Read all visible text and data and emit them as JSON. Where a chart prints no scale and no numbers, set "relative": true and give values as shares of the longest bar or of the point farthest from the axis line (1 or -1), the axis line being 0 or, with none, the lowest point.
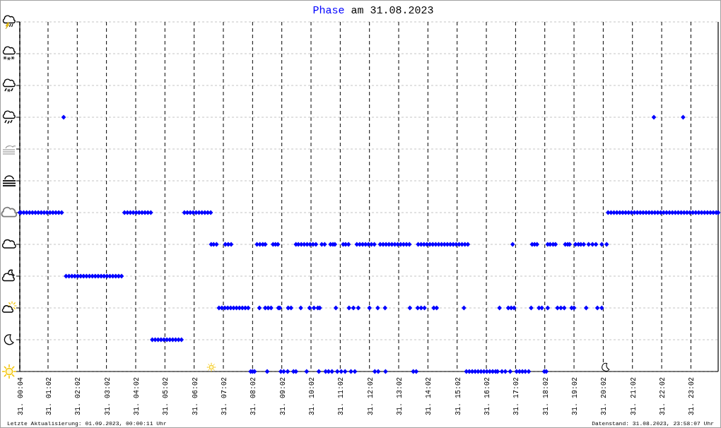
{
  "chart_data": {
    "type": "scatter",
    "title": "Phase am 31.08.2023",
    "relative": true,
    "xlim": [
      "2023-08-31T00:04",
      "2023-08-31T23:58"
    ],
    "xticks": [
      {
        "value": "2023-08-31T00:04",
        "label": "31. 00:04"
      },
      {
        "value": "2023-08-31T01:02",
        "label": "31. 01:02"
      },
      {
        "value": "2023-08-31T02:02",
        "label": "31. 02:02"
      },
      {
        "value": "2023-08-31T03:02",
        "label": "31. 03:02"
      },
      {
        "value": "2023-08-31T04:02",
        "label": "31. 04:02"
      },
      {
        "value": "2023-08-31T05:02",
        "label": "31. 05:02"
      },
      {
        "value": "2023-08-31T06:02",
        "label": "31. 06:02"
      },
      {
        "value": "2023-08-31T07:02",
        "label": "31. 07:02"
      },
      {
        "value": "2023-08-31T08:02",
        "label": "31. 08:02"
      },
      {
        "value": "2023-08-31T09:02",
        "label": "31. 09:02"
      },
      {
        "value": "2023-08-31T10:02",
        "label": "31. 10:02"
      },
      {
        "value": "2023-08-31T11:02",
        "label": "31. 11:02"
      },
      {
        "value": "2023-08-31T12:02",
        "label": "31. 12:02"
      },
      {
        "value": "2023-08-31T13:02",
        "label": "31. 13:02"
      },
      {
        "value": "2023-08-31T14:02",
        "label": "31. 14:02"
      },
      {
        "value": "2023-08-31T15:02",
        "label": "31. 15:02"
      },
      {
        "value": "2023-08-31T16:02",
        "label": "31. 16:02"
      },
      {
        "value": "2023-08-31T17:02",
        "label": "31. 17:02"
      },
      {
        "value": "2023-08-31T18:02",
        "label": "31. 18:02"
      },
      {
        "value": "2023-08-31T19:02",
        "label": "31. 19:02"
      },
      {
        "value": "2023-08-31T20:02",
        "label": "31. 20:02"
      },
      {
        "value": "2023-08-31T21:02",
        "label": "31. 21:02"
      },
      {
        "value": "2023-08-31T22:02",
        "label": "31. 22:02"
      },
      {
        "value": "2023-08-31T23:02",
        "label": "31. 23:02"
      }
    ],
    "grid": true,
    "marker": "diamond",
    "color": "#0000ff",
    "x": [
      "2023-08-31T00:04",
      "2023-08-31T00:06",
      "2023-08-31T00:12",
      "2023-08-31T00:18",
      "2023-08-31T00:24",
      "2023-08-31T00:30",
      "2023-08-31T00:36",
      "2023-08-31T00:42",
      "2023-08-31T00:48",
      "2023-08-31T00:54",
      "2023-08-31T01:00",
      "2023-08-31T01:06",
      "2023-08-31T01:12",
      "2023-08-31T01:18",
      "2023-08-31T01:24",
      "2023-08-31T01:30",
      "2023-08-31T03:39",
      "2023-08-31T03:45",
      "2023-08-31T03:51",
      "2023-08-31T03:57",
      "2023-08-31T04:03",
      "2023-08-31T04:09",
      "2023-08-31T04:15",
      "2023-08-31T04:21",
      "2023-08-31T04:27",
      "2023-08-31T04:33",
      "2023-08-31T05:42",
      "2023-08-31T05:48",
      "2023-08-31T05:54",
      "2023-08-31T06:00",
      "2023-08-31T06:06",
      "2023-08-31T06:12",
      "2023-08-31T06:18",
      "2023-08-31T06:24",
      "2023-08-31T06:30",
      "2023-08-31T06:36",
      "2023-08-31T20:12",
      "2023-08-31T20:18",
      "2023-08-31T20:24",
      "2023-08-31T20:30",
      "2023-08-31T20:36",
      "2023-08-31T20:42",
      "2023-08-31T20:48",
      "2023-08-31T20:54",
      "2023-08-31T21:00",
      "2023-08-31T21:06",
      "2023-08-31T21:12",
      "2023-08-31T21:18",
      "2023-08-31T21:24",
      "2023-08-31T21:30",
      "2023-08-31T21:36",
      "2023-08-31T21:42",
      "2023-08-31T21:48",
      "2023-08-31T21:54",
      "2023-08-31T22:00",
      "2023-08-31T22:06",
      "2023-08-31T22:12",
      "2023-08-31T22:18",
      "2023-08-31T22:24",
      "2023-08-31T22:30",
      "2023-08-31T22:36",
      "2023-08-31T22:42",
      "2023-08-31T22:48",
      "2023-08-31T22:54",
      "2023-08-31T23:00",
      "2023-08-31T23:06",
      "2023-08-31T23:12",
      "2023-08-31T23:18",
      "2023-08-31T23:24",
      "2023-08-31T23:30",
      "2023-08-31T23:36",
      "2023-08-31T23:42",
      "2023-08-31T23:48",
      "2023-08-31T23:54",
      "2023-08-31T23:58",
      "2023-08-31T01:34",
      "2023-08-31T21:46",
      "2023-08-31T22:46",
      "2023-08-31T01:39",
      "2023-08-31T01:45",
      "2023-08-31T01:51",
      "2023-08-31T01:57",
      "2023-08-31T02:03",
      "2023-08-31T02:09",
      "2023-08-31T02:15",
      "2023-08-31T02:21",
      "2023-08-31T02:27",
      "2023-08-31T02:33",
      "2023-08-31T02:39",
      "2023-08-31T02:45",
      "2023-08-31T02:51",
      "2023-08-31T02:57",
      "2023-08-31T03:03",
      "2023-08-31T03:09",
      "2023-08-31T03:15",
      "2023-08-31T03:21",
      "2023-08-31T03:27",
      "2023-08-31T03:33",
      "2023-08-31T04:36",
      "2023-08-31T04:42",
      "2023-08-31T04:48",
      "2023-08-31T04:54",
      "2023-08-31T05:00",
      "2023-08-31T05:06",
      "2023-08-31T05:12",
      "2023-08-31T05:18",
      "2023-08-31T05:24",
      "2023-08-31T05:30",
      "2023-08-31T05:36",
      "2023-08-31T06:37",
      "2023-08-31T06:42",
      "2023-08-31T06:48",
      "2023-08-31T07:06",
      "2023-08-31T07:12",
      "2023-08-31T07:18",
      "2023-08-31T08:11",
      "2023-08-31T08:17",
      "2023-08-31T08:23",
      "2023-08-31T08:28",
      "2023-08-31T08:44",
      "2023-08-31T08:49",
      "2023-08-31T08:54",
      "2023-08-31T09:31",
      "2023-08-31T09:36",
      "2023-08-31T09:42",
      "2023-08-31T09:48",
      "2023-08-31T09:54",
      "2023-08-31T10:00",
      "2023-08-31T10:06",
      "2023-08-31T10:12",
      "2023-08-31T10:24",
      "2023-08-31T10:30",
      "2023-08-31T10:42",
      "2023-08-31T10:47",
      "2023-08-31T10:51",
      "2023-08-31T11:08",
      "2023-08-31T11:13",
      "2023-08-31T11:19",
      "2023-08-31T11:36",
      "2023-08-31T11:42",
      "2023-08-31T11:48",
      "2023-08-31T11:54",
      "2023-08-31T12:00",
      "2023-08-31T12:06",
      "2023-08-31T12:12",
      "2023-08-31T12:24",
      "2023-08-31T12:30",
      "2023-08-31T12:36",
      "2023-08-31T12:42",
      "2023-08-31T12:48",
      "2023-08-31T12:54",
      "2023-08-31T13:00",
      "2023-08-31T13:06",
      "2023-08-31T13:12",
      "2023-08-31T13:18",
      "2023-08-31T13:24",
      "2023-08-31T13:42",
      "2023-08-31T13:48",
      "2023-08-31T13:54",
      "2023-08-31T14:00",
      "2023-08-31T14:06",
      "2023-08-31T14:12",
      "2023-08-31T14:18",
      "2023-08-31T14:24",
      "2023-08-31T14:30",
      "2023-08-31T14:36",
      "2023-08-31T14:42",
      "2023-08-31T14:48",
      "2023-08-31T14:54",
      "2023-08-31T15:00",
      "2023-08-31T15:06",
      "2023-08-31T15:12",
      "2023-08-31T15:18",
      "2023-08-31T15:24",
      "2023-08-31T16:56",
      "2023-08-31T17:36",
      "2023-08-31T17:41",
      "2023-08-31T17:46",
      "2023-08-31T18:08",
      "2023-08-31T18:13",
      "2023-08-31T18:19",
      "2023-08-31T18:24",
      "2023-08-31T18:44",
      "2023-08-31T18:49",
      "2023-08-31T18:53",
      "2023-08-31T19:05",
      "2023-08-31T19:11",
      "2023-08-31T19:16",
      "2023-08-31T19:22",
      "2023-08-31T19:32",
      "2023-08-31T19:40",
      "2023-08-31T19:47",
      "2023-08-31T19:59",
      "2023-08-31T20:09",
      "2023-08-31T06:53",
      "2023-08-31T06:59",
      "2023-08-31T07:05",
      "2023-08-31T07:11",
      "2023-08-31T07:17",
      "2023-08-31T07:23",
      "2023-08-31T07:29",
      "2023-08-31T07:35",
      "2023-08-31T07:41",
      "2023-08-31T07:47",
      "2023-08-31T07:53",
      "2023-08-31T08:16",
      "2023-08-31T08:28",
      "2023-08-31T08:34",
      "2023-08-31T08:40",
      "2023-08-31T08:55",
      "2023-08-31T08:58",
      "2023-08-31T09:15",
      "2023-08-31T09:21",
      "2023-08-31T09:41",
      "2023-08-31T09:59",
      "2023-08-31T10:08",
      "2023-08-31T10:16",
      "2023-08-31T10:20",
      "2023-08-31T10:53",
      "2023-08-31T11:20",
      "2023-08-31T11:29",
      "2023-08-31T11:39",
      "2023-08-31T12:02",
      "2023-08-31T12:19",
      "2023-08-31T12:34",
      "2023-08-31T13:25",
      "2023-08-31T13:41",
      "2023-08-31T13:48",
      "2023-08-31T13:55",
      "2023-08-31T14:14",
      "2023-08-31T14:20",
      "2023-08-31T15:16",
      "2023-08-31T16:29",
      "2023-08-31T16:47",
      "2023-08-31T16:53",
      "2023-08-31T16:59",
      "2023-08-31T17:34",
      "2023-08-31T17:50",
      "2023-08-31T17:56",
      "2023-08-31T18:08",
      "2023-08-31T18:28",
      "2023-08-31T18:35",
      "2023-08-31T18:42",
      "2023-08-31T18:57",
      "2023-08-31T19:02",
      "2023-08-31T19:27",
      "2023-08-31T19:50",
      "2023-08-31T19:59",
      "2023-08-31T07:58",
      "2023-08-31T08:02",
      "2023-08-31T08:06",
      "2023-08-31T08:32",
      "2023-08-31T09:00",
      "2023-08-31T09:06",
      "2023-08-31T09:14",
      "2023-08-31T09:26",
      "2023-08-31T09:31",
      "2023-08-31T09:53",
      "2023-08-31T10:18",
      "2023-08-31T10:32",
      "2023-08-31T10:38",
      "2023-08-31T10:45",
      "2023-08-31T10:56",
      "2023-08-31T11:04",
      "2023-08-31T11:12",
      "2023-08-31T11:24",
      "2023-08-31T11:32",
      "2023-08-31T12:13",
      "2023-08-31T12:20",
      "2023-08-31T12:35",
      "2023-08-31T13:32",
      "2023-08-31T13:38",
      "2023-08-31T15:21",
      "2023-08-31T15:27",
      "2023-08-31T15:33",
      "2023-08-31T15:39",
      "2023-08-31T15:45",
      "2023-08-31T15:51",
      "2023-08-31T15:57",
      "2023-08-31T16:03",
      "2023-08-31T16:09",
      "2023-08-31T16:15",
      "2023-08-31T16:21",
      "2023-08-31T16:25",
      "2023-08-31T16:34",
      "2023-08-31T16:41",
      "2023-08-31T16:51",
      "2023-08-31T17:04",
      "2023-08-31T17:10",
      "2023-08-31T17:16",
      "2023-08-31T17:22",
      "2023-08-31T17:29",
      "2023-08-31T18:01",
      "2023-08-31T18:05"
    ],
    "values": [
      0.625,
      0.625,
      0.625,
      0.625,
      0.625,
      0.625,
      0.625,
      0.625,
      0.625,
      0.625,
      0.625,
      0.625,
      0.625,
      0.625,
      0.625,
      0.625,
      0.625,
      0.625,
      0.625,
      0.625,
      0.625,
      0.625,
      0.625,
      0.625,
      0.625,
      0.625,
      0.625,
      0.625,
      0.625,
      0.625,
      0.625,
      0.625,
      0.625,
      0.625,
      0.625,
      0.625,
      0.625,
      0.625,
      0.625,
      0.625,
      0.625,
      0.625,
      0.625,
      0.625,
      0.625,
      0.625,
      0.625,
      0.625,
      0.625,
      0.625,
      0.625,
      0.625,
      0.625,
      0.625,
      0.625,
      0.625,
      0.625,
      0.625,
      0.625,
      0.625,
      0.625,
      0.625,
      0.625,
      0.625,
      0.625,
      0.625,
      0.625,
      0.625,
      0.625,
      0.625,
      0.625,
      0.625,
      0.625,
      0.625,
      0.625,
      1,
      1,
      1,
      0.375,
      0.375,
      0.375,
      0.375,
      0.375,
      0.375,
      0.375,
      0.375,
      0.375,
      0.375,
      0.375,
      0.375,
      0.375,
      0.375,
      0.375,
      0.375,
      0.375,
      0.375,
      0.375,
      0.375,
      0.125,
      0.125,
      0.125,
      0.125,
      0.125,
      0.125,
      0.125,
      0.125,
      0.125,
      0.125,
      0.125,
      0.5,
      0.5,
      0.5,
      0.5,
      0.5,
      0.5,
      0.5,
      0.5,
      0.5,
      0.5,
      0.5,
      0.5,
      0.5,
      0.5,
      0.5,
      0.5,
      0.5,
      0.5,
      0.5,
      0.5,
      0.5,
      0.5,
      0.5,
      0.5,
      0.5,
      0.5,
      0.5,
      0.5,
      0.5,
      0.5,
      0.5,
      0.5,
      0.5,
      0.5,
      0.5,
      0.5,
      0.5,
      0.5,
      0.5,
      0.5,
      0.5,
      0.5,
      0.5,
      0.5,
      0.5,
      0.5,
      0.5,
      0.5,
      0.5,
      0.5,
      0.5,
      0.5,
      0.5,
      0.5,
      0.5,
      0.5,
      0.5,
      0.5,
      0.5,
      0.5,
      0.5,
      0.5,
      0.5,
      0.5,
      0.5,
      0.5,
      0.5,
      0.5,
      0.5,
      0.5,
      0.5,
      0.5,
      0.5,
      0.5,
      0.5,
      0.5,
      0.5,
      0.5,
      0.5,
      0.5,
      0.5,
      0.5,
      0.5,
      0.5,
      0.5,
      0.25,
      0.25,
      0.25,
      0.25,
      0.25,
      0.25,
      0.25,
      0.25,
      0.25,
      0.25,
      0.25,
      0.25,
      0.25,
      0.25,
      0.25,
      0.25,
      0.25,
      0.25,
      0.25,
      0.25,
      0.25,
      0.25,
      0.25,
      0.25,
      0.25,
      0.25,
      0.25,
      0.25,
      0.25,
      0.25,
      0.25,
      0.25,
      0.25,
      0.25,
      0.25,
      0.25,
      0.25,
      0.25,
      0.25,
      0.25,
      0.25,
      0.25,
      0.25,
      0.25,
      0.25,
      0.25,
      0.25,
      0.25,
      0.25,
      0.25,
      0.25,
      0.25,
      0.25,
      0.25,
      0,
      0,
      0,
      0,
      0,
      0,
      0,
      0,
      0,
      0,
      0,
      0,
      0,
      0,
      0,
      0,
      0,
      0,
      0,
      0,
      0,
      0,
      0,
      0,
      0,
      0,
      0,
      0,
      0,
      0,
      0,
      0,
      0,
      0,
      0,
      0,
      0,
      0,
      0,
      0,
      0,
      0,
      0,
      0,
      0,
      0
    ],
    "annotations": [
      "Letzte Aktualisierung: 01.09.2023, 00:00:11 Uhr",
      "Datenstand: 31.08.2023, 23:58:07 Uhr"
    ]
  }
}
